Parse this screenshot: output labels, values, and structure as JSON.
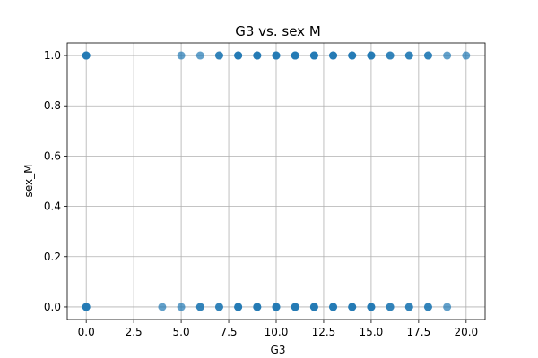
{
  "chart_data": {
    "type": "scatter",
    "title": "G3 vs. sex M",
    "xlabel": "G3",
    "ylabel": "sex_M",
    "xlim": [
      -1,
      21
    ],
    "ylim": [
      -0.05,
      1.05
    ],
    "xticks": [
      0.0,
      2.5,
      5.0,
      7.5,
      10.0,
      12.5,
      15.0,
      17.5,
      20.0
    ],
    "xtick_labels": [
      "0.0",
      "2.5",
      "5.0",
      "7.5",
      "10.0",
      "12.5",
      "15.0",
      "17.5",
      "20.0"
    ],
    "yticks": [
      0.0,
      0.2,
      0.4,
      0.6,
      0.8,
      1.0
    ],
    "ytick_labels": [
      "0.0",
      "0.2",
      "0.4",
      "0.6",
      "0.8",
      "1.0"
    ],
    "grid": true,
    "color": "#1f77b4",
    "alpha": 0.7,
    "points": [
      {
        "x": 0,
        "y": 1
      },
      {
        "x": 0,
        "y": 1
      },
      {
        "x": 0,
        "y": 1
      },
      {
        "x": 5,
        "y": 1
      },
      {
        "x": 6,
        "y": 1
      },
      {
        "x": 7,
        "y": 1
      },
      {
        "x": 7,
        "y": 1
      },
      {
        "x": 8,
        "y": 1
      },
      {
        "x": 8,
        "y": 1
      },
      {
        "x": 8,
        "y": 1
      },
      {
        "x": 9,
        "y": 1
      },
      {
        "x": 9,
        "y": 1
      },
      {
        "x": 9,
        "y": 1
      },
      {
        "x": 10,
        "y": 1
      },
      {
        "x": 10,
        "y": 1
      },
      {
        "x": 10,
        "y": 1
      },
      {
        "x": 11,
        "y": 1
      },
      {
        "x": 11,
        "y": 1
      },
      {
        "x": 11,
        "y": 1
      },
      {
        "x": 12,
        "y": 1
      },
      {
        "x": 12,
        "y": 1
      },
      {
        "x": 12,
        "y": 1
      },
      {
        "x": 13,
        "y": 1
      },
      {
        "x": 13,
        "y": 1
      },
      {
        "x": 13,
        "y": 1
      },
      {
        "x": 14,
        "y": 1
      },
      {
        "x": 14,
        "y": 1
      },
      {
        "x": 14,
        "y": 1
      },
      {
        "x": 15,
        "y": 1
      },
      {
        "x": 15,
        "y": 1
      },
      {
        "x": 15,
        "y": 1
      },
      {
        "x": 16,
        "y": 1
      },
      {
        "x": 16,
        "y": 1
      },
      {
        "x": 17,
        "y": 1
      },
      {
        "x": 17,
        "y": 1
      },
      {
        "x": 18,
        "y": 1
      },
      {
        "x": 18,
        "y": 1
      },
      {
        "x": 19,
        "y": 1
      },
      {
        "x": 20,
        "y": 1
      },
      {
        "x": 0,
        "y": 0
      },
      {
        "x": 0,
        "y": 0
      },
      {
        "x": 0,
        "y": 0
      },
      {
        "x": 4,
        "y": 0
      },
      {
        "x": 5,
        "y": 0
      },
      {
        "x": 6,
        "y": 0
      },
      {
        "x": 6,
        "y": 0
      },
      {
        "x": 7,
        "y": 0
      },
      {
        "x": 7,
        "y": 0
      },
      {
        "x": 8,
        "y": 0
      },
      {
        "x": 8,
        "y": 0
      },
      {
        "x": 8,
        "y": 0
      },
      {
        "x": 9,
        "y": 0
      },
      {
        "x": 9,
        "y": 0
      },
      {
        "x": 9,
        "y": 0
      },
      {
        "x": 10,
        "y": 0
      },
      {
        "x": 10,
        "y": 0
      },
      {
        "x": 10,
        "y": 0
      },
      {
        "x": 11,
        "y": 0
      },
      {
        "x": 11,
        "y": 0
      },
      {
        "x": 11,
        "y": 0
      },
      {
        "x": 12,
        "y": 0
      },
      {
        "x": 12,
        "y": 0
      },
      {
        "x": 12,
        "y": 0
      },
      {
        "x": 13,
        "y": 0
      },
      {
        "x": 13,
        "y": 0
      },
      {
        "x": 13,
        "y": 0
      },
      {
        "x": 14,
        "y": 0
      },
      {
        "x": 14,
        "y": 0
      },
      {
        "x": 14,
        "y": 0
      },
      {
        "x": 15,
        "y": 0
      },
      {
        "x": 15,
        "y": 0
      },
      {
        "x": 15,
        "y": 0
      },
      {
        "x": 16,
        "y": 0
      },
      {
        "x": 16,
        "y": 0
      },
      {
        "x": 17,
        "y": 0
      },
      {
        "x": 17,
        "y": 0
      },
      {
        "x": 18,
        "y": 0
      },
      {
        "x": 18,
        "y": 0
      },
      {
        "x": 19,
        "y": 0
      }
    ]
  }
}
